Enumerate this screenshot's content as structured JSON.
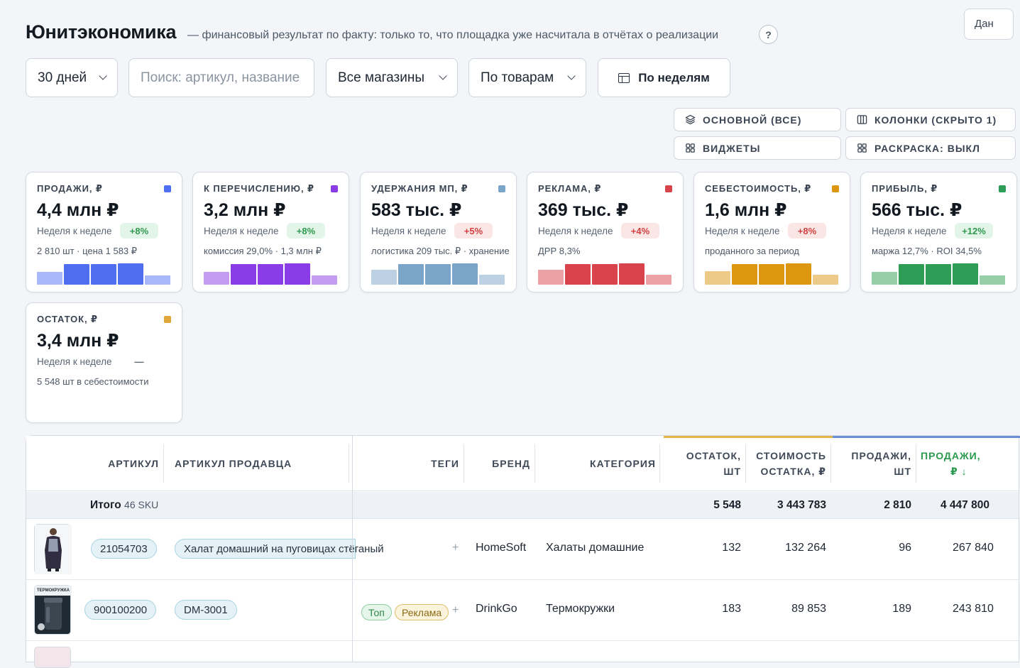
{
  "header": {
    "title": "Юнитэкономика",
    "subtitle": "— финансовый результат по факту: только то, что площадка уже насчитала в отчётах о реализации",
    "help_label": "?",
    "data_button": "Дан"
  },
  "filters": {
    "period": "30 дней",
    "search_placeholder": "Поиск: артикул, название",
    "stores": "Все магазины",
    "grouping": "По товарам",
    "interval": "По неделям"
  },
  "view_buttons": {
    "main": "ОСНОВНОЙ (ВСЕ)",
    "columns": "КОЛОНКИ (СКРЫТО 1)",
    "widgets": "ВИДЖЕТЫ",
    "coloring": "РАСКРАСКА: ВЫКЛ"
  },
  "cards": [
    {
      "label": "ПРОДАЖИ, ₽",
      "value": "4,4 млн ₽",
      "week_label": "Неделя к неделе",
      "delta": "+8%",
      "delta_type": "up",
      "sub": "2 810 шт · цена 1 583 ₽",
      "color": "#4f6ff0",
      "bars": [
        0.55,
        0.9,
        0.9,
        0.95,
        0.4
      ]
    },
    {
      "label": "К ПЕРЕЧИСЛЕНИЮ, ₽",
      "value": "3,2 млн ₽",
      "week_label": "Неделя к неделе",
      "delta": "+8%",
      "delta_type": "up",
      "sub": "комиссия 29,0% · 1,3 млн ₽",
      "color": "#8a3ce6",
      "bars": [
        0.55,
        0.9,
        0.9,
        0.95,
        0.4
      ]
    },
    {
      "label": "УДЕРЖАНИЯ МП, ₽",
      "value": "583 тыс. ₽",
      "week_label": "Неделя к неделе",
      "delta": "+5%",
      "delta_type": "down",
      "sub": "логистика 209 тыс. ₽ · хранение",
      "color": "#7aa4c8",
      "bars": [
        0.65,
        0.9,
        0.9,
        0.95,
        0.45
      ]
    },
    {
      "label": "РЕКЛАМА, ₽",
      "value": "369 тыс. ₽",
      "week_label": "Неделя к неделе",
      "delta": "+4%",
      "delta_type": "down",
      "sub": "ДРР 8,3%",
      "color": "#d9434b",
      "bars": [
        0.65,
        0.9,
        0.9,
        0.95,
        0.45
      ]
    },
    {
      "label": "СЕБЕСТОИМОСТЬ, ₽",
      "value": "1,6 млн ₽",
      "week_label": "Неделя к неделе",
      "delta": "+8%",
      "delta_type": "down",
      "sub": "проданного за период",
      "color": "#dc960f",
      "bars": [
        0.6,
        0.9,
        0.9,
        0.95,
        0.45
      ]
    },
    {
      "label": "ПРИБЫЛЬ, ₽",
      "value": "566 тыс. ₽",
      "week_label": "Неделя к неделе",
      "delta": "+12%",
      "delta_type": "up",
      "sub": "маржа 12,7% · ROI 34,5%",
      "color": "#2e9d55",
      "bars": [
        0.55,
        0.9,
        0.9,
        0.95,
        0.4
      ]
    },
    {
      "label": "ОСТАТОК, ₽",
      "value": "3,4 млн ₽",
      "week_label": "Неделя к неделе",
      "delta": "—",
      "delta_type": "flat",
      "sub": "5 548 шт в себестоимости",
      "color": "#e0a63a",
      "bars": []
    }
  ],
  "table": {
    "headers": {
      "article": "АРТИКУЛ",
      "seller_article": "АРТИКУЛ ПРОДАВЦА",
      "tags": "ТЕГИ",
      "brand": "БРЕНД",
      "category": "КАТЕГОРИЯ",
      "stock_qty_1": "ОСТАТОК,",
      "stock_qty_2": "ШТ",
      "stock_cost_1": "СТОИМОСТЬ",
      "stock_cost_2": "ОСТАТКА, ₽",
      "sales_qty_1": "ПРОДАЖИ,",
      "sales_qty_2": "ШТ",
      "sales_rub_1": "ПРОДАЖИ,",
      "sales_rub_2": "₽ ↓"
    },
    "total": {
      "label": "Итого",
      "sku": "46 SKU",
      "stock_qty": "5 548",
      "stock_cost": "3 443 783",
      "sales_qty": "2 810",
      "sales_rub": "4 447 800"
    },
    "rows": [
      {
        "article": "21054703",
        "seller_article": "Халат домашний на пуговицах стёганый",
        "tags": [],
        "brand": "HomeSoft",
        "category": "Халаты домашние",
        "stock_qty": "132",
        "stock_cost": "132 264",
        "sales_qty": "96",
        "sales_rub": "267 840"
      },
      {
        "article": "900100200",
        "seller_article": "DM-3001",
        "tags": [
          {
            "label": "Топ",
            "type": "top"
          },
          {
            "label": "Реклама",
            "type": "ad"
          }
        ],
        "brand": "DrinkGo",
        "category": "Термокружки",
        "stock_qty": "183",
        "stock_cost": "89 853",
        "sales_qty": "189",
        "sales_rub": "243 810"
      }
    ],
    "thumb_label_2": "ТЕРМОКРУЖКА",
    "add_tag": "+"
  }
}
